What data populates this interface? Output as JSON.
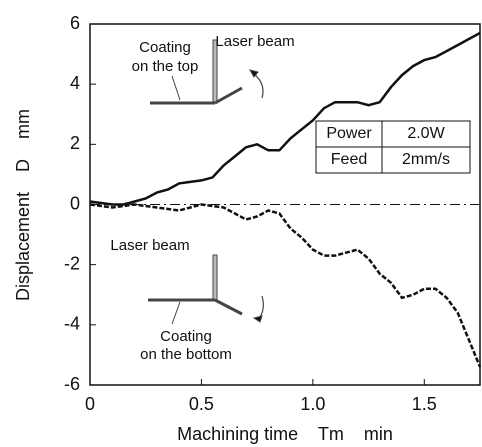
{
  "chart_data": {
    "type": "line",
    "xlabel": "Machining time    Tm    min",
    "ylabel": "Displacement    D    mm",
    "x": [
      0,
      0.05,
      0.1,
      0.15,
      0.2,
      0.25,
      0.3,
      0.35,
      0.4,
      0.45,
      0.5,
      0.55,
      0.6,
      0.65,
      0.7,
      0.75,
      0.8,
      0.85,
      0.9,
      0.95,
      1.0,
      1.05,
      1.1,
      1.15,
      1.2,
      1.25,
      1.3,
      1.35,
      1.4,
      1.45,
      1.5,
      1.55,
      1.6,
      1.65,
      1.7,
      1.75
    ],
    "series": [
      {
        "color": "#111111",
        "dash": false,
        "values": [
          0.1,
          0.05,
          0,
          0,
          0.1,
          0.2,
          0.4,
          0.5,
          0.7,
          0.75,
          0.8,
          0.9,
          1.3,
          1.6,
          1.9,
          2.0,
          1.8,
          1.8,
          2.2,
          2.5,
          2.8,
          3.2,
          3.4,
          3.4,
          3.4,
          3.3,
          3.4,
          3.9,
          4.3,
          4.6,
          4.8,
          4.9,
          5.1,
          5.3,
          5.5,
          5.7
        ]
      },
      {
        "color": "#111111",
        "dash": true,
        "values": [
          0,
          -0.05,
          -0.1,
          -0.05,
          0,
          -0.05,
          -0.1,
          -0.15,
          -0.2,
          -0.1,
          0,
          -0.05,
          -0.1,
          -0.3,
          -0.5,
          -0.4,
          -0.2,
          -0.3,
          -0.8,
          -1.1,
          -1.5,
          -1.7,
          -1.7,
          -1.6,
          -1.5,
          -1.8,
          -2.3,
          -2.6,
          -3.1,
          -3.0,
          -2.8,
          -2.8,
          -3.1,
          -3.6,
          -4.5,
          -5.4
        ]
      }
    ],
    "xlim": [
      0,
      1.75
    ],
    "xticks": [
      0,
      0.5,
      {
        "value": 1,
        "label": "1.0"
      },
      1.5
    ],
    "ylim": [
      -6,
      6
    ],
    "yticks": [
      -6,
      -4,
      -2,
      0,
      2,
      4,
      6
    ],
    "reference_line": 0,
    "annotations": {
      "top_coating": [
        "Coating",
        "on the top"
      ],
      "top_beam": "Laser beam",
      "bottom_beam": "Laser beam",
      "bottom_coating": [
        "Coating",
        "on the bottom"
      ]
    },
    "table": [
      [
        "Power",
        "2.0W"
      ],
      [
        "Feed",
        "2mm/s"
      ]
    ]
  }
}
